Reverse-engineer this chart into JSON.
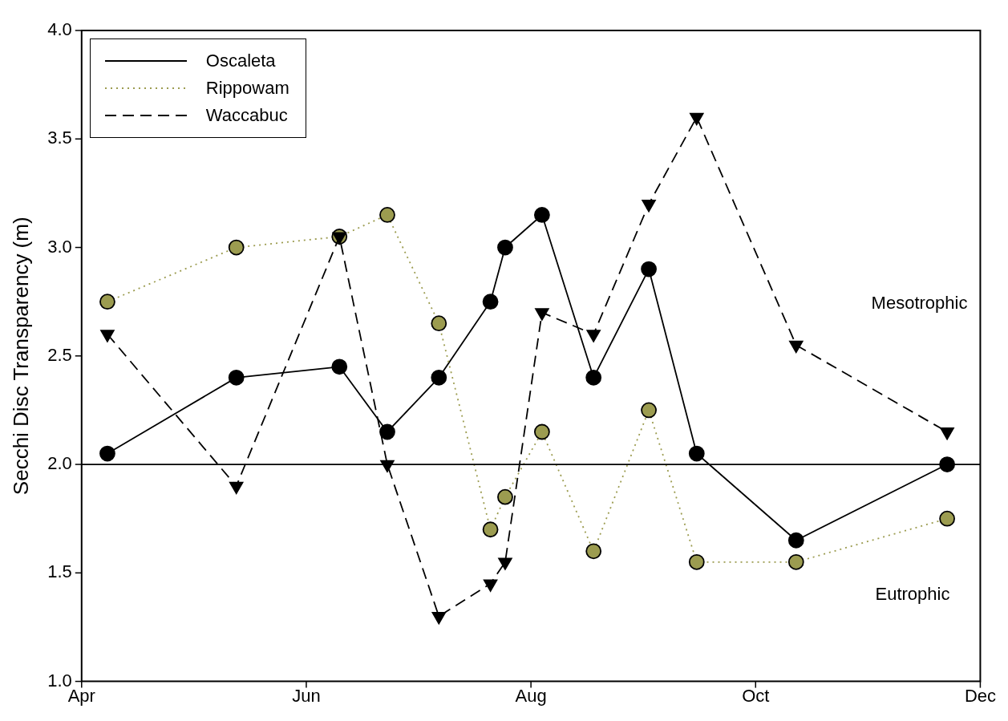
{
  "chart_data": {
    "type": "line",
    "ylabel": "Secchi Disc Transparency (m)",
    "x": [
      "--04-08",
      "--05-13",
      "--06-10",
      "--06-23",
      "--07-07",
      "--07-21",
      "--07-25",
      "--08-04",
      "--08-18",
      "--09-02",
      "--09-15",
      "--10-12",
      "--11-22"
    ],
    "series": [
      {
        "name": "Oscaleta",
        "color": "#000000",
        "marker": "circle",
        "line_style": "solid",
        "values": [
          2.05,
          2.4,
          2.45,
          2.15,
          2.4,
          2.75,
          3.0,
          3.15,
          2.4,
          2.9,
          2.05,
          1.65,
          2.0
        ]
      },
      {
        "name": "Rippowam",
        "color": "#9c9c50",
        "marker": "circle",
        "line_style": "dotted",
        "values": [
          2.75,
          3.0,
          3.05,
          3.15,
          2.65,
          1.7,
          1.85,
          2.15,
          1.6,
          2.25,
          1.55,
          1.55,
          1.75
        ]
      },
      {
        "name": "Waccabuc",
        "color": "#000000",
        "marker": "triangle",
        "line_style": "dashed",
        "values": [
          2.6,
          1.9,
          3.05,
          2.0,
          1.3,
          1.45,
          1.55,
          2.7,
          2.6,
          3.2,
          3.6,
          2.55,
          2.15
        ]
      }
    ],
    "xlim": [
      "--04-01",
      "--12-01"
    ],
    "xticks": [
      {
        "value": "--04-01",
        "label": "Apr"
      },
      {
        "value": "--06-01",
        "label": "Jun"
      },
      {
        "value": "--08-01",
        "label": "Aug"
      },
      {
        "value": "--10-01",
        "label": "Oct"
      },
      {
        "value": "--12-01",
        "label": "Dec"
      }
    ],
    "ylim": [
      1,
      4
    ],
    "yticks": [
      {
        "value": 1,
        "label": "1.0"
      },
      {
        "value": 1.5,
        "label": "1.5"
      },
      {
        "value": 2,
        "label": "2.0"
      },
      {
        "value": 2.5,
        "label": "2.5"
      },
      {
        "value": 3,
        "label": "3.0"
      },
      {
        "value": 3.5,
        "label": "3.5"
      },
      {
        "value": 4,
        "label": "4.0"
      }
    ],
    "ref_lines": [
      {
        "axis": "y",
        "value": 2,
        "color": "#000000",
        "line_style": "solid"
      }
    ],
    "annotations": [
      "Mesotrophic",
      "Eutrophic"
    ],
    "grid": false,
    "legend": "top left"
  }
}
